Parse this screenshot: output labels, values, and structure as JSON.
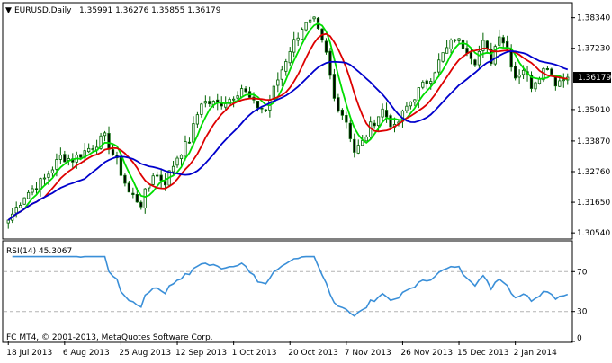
{
  "chart_data": [
    {
      "type": "candlestick",
      "title": "EURUSD,Daily",
      "ohlc_readout": "1.35991 1.36276 1.35855 1.36179",
      "current_price_label": "1.36179",
      "price_tick_labels": [
        "1.38340",
        "1.37230",
        "1.35010",
        "1.33870",
        "1.32760",
        "1.31650",
        "1.30540"
      ],
      "price_ticks": [
        1.3834,
        1.3723,
        1.3501,
        1.3387,
        1.3276,
        1.3165,
        1.3054
      ],
      "ylim": [
        1.3035,
        1.3885
      ],
      "current_price": 1.36179,
      "x_labels": [
        "18 Jul 2013",
        "6 Aug 2013",
        "25 Aug 2013",
        "12 Sep 2013",
        "1 Oct 2013",
        "20 Oct 2013",
        "7 Nov 2013",
        "26 Nov 2013",
        "15 Dec 2013",
        "2 Jan 2014"
      ],
      "x_label_bar_index": [
        0,
        14,
        28,
        42,
        56,
        70,
        84,
        98,
        112,
        126
      ],
      "bar_count": 140,
      "close_anchors": [
        [
          0,
          1.31
        ],
        [
          4,
          1.319
        ],
        [
          9,
          1.325
        ],
        [
          13,
          1.333
        ],
        [
          16,
          1.332
        ],
        [
          20,
          1.336
        ],
        [
          24,
          1.34
        ],
        [
          27,
          1.331
        ],
        [
          30,
          1.32
        ],
        [
          33,
          1.316
        ],
        [
          36,
          1.327
        ],
        [
          39,
          1.324
        ],
        [
          42,
          1.333
        ],
        [
          45,
          1.339
        ],
        [
          48,
          1.353
        ],
        [
          52,
          1.352
        ],
        [
          55,
          1.354
        ],
        [
          58,
          1.358
        ],
        [
          61,
          1.352
        ],
        [
          64,
          1.35
        ],
        [
          67,
          1.361
        ],
        [
          70,
          1.372
        ],
        [
          73,
          1.38
        ],
        [
          76,
          1.382
        ],
        [
          79,
          1.37
        ],
        [
          81,
          1.354
        ],
        [
          84,
          1.346
        ],
        [
          86,
          1.335
        ],
        [
          88,
          1.338
        ],
        [
          90,
          1.344
        ],
        [
          93,
          1.35
        ],
        [
          96,
          1.343
        ],
        [
          99,
          1.351
        ],
        [
          102,
          1.357
        ],
        [
          105,
          1.362
        ],
        [
          108,
          1.37
        ],
        [
          111,
          1.376
        ],
        [
          114,
          1.372
        ],
        [
          116,
          1.368
        ],
        [
          118,
          1.374
        ],
        [
          120,
          1.368
        ],
        [
          122,
          1.378
        ],
        [
          124,
          1.372
        ],
        [
          126,
          1.362
        ],
        [
          128,
          1.365
        ],
        [
          130,
          1.359
        ],
        [
          132,
          1.363
        ],
        [
          134,
          1.366
        ],
        [
          136,
          1.36
        ],
        [
          139,
          1.3618
        ]
      ],
      "moving_averages": [
        {
          "color": "#00dd00",
          "period": 5
        },
        {
          "color": "#dd0000",
          "period": 10
        },
        {
          "color": "#0000cc",
          "period": 20
        }
      ],
      "candle_color": "#006400"
    },
    {
      "type": "line",
      "indicator_label": "RSI(14) 45.3067",
      "ylim": [
        0,
        100
      ],
      "levels": [
        70,
        30
      ],
      "axis_labels": [
        "70",
        "30",
        "0"
      ],
      "axis_ticks": [
        70,
        30,
        0
      ],
      "period": 14,
      "line_color": "#3a8fd8"
    }
  ],
  "copyright": "FC MT4, © 2001-2013, MetaQuotes Software Corp.",
  "colors": {
    "border": "#000000",
    "grid": "#b4b4b4",
    "current_price_bg": "#000000",
    "current_price_fg": "#ffffff"
  }
}
